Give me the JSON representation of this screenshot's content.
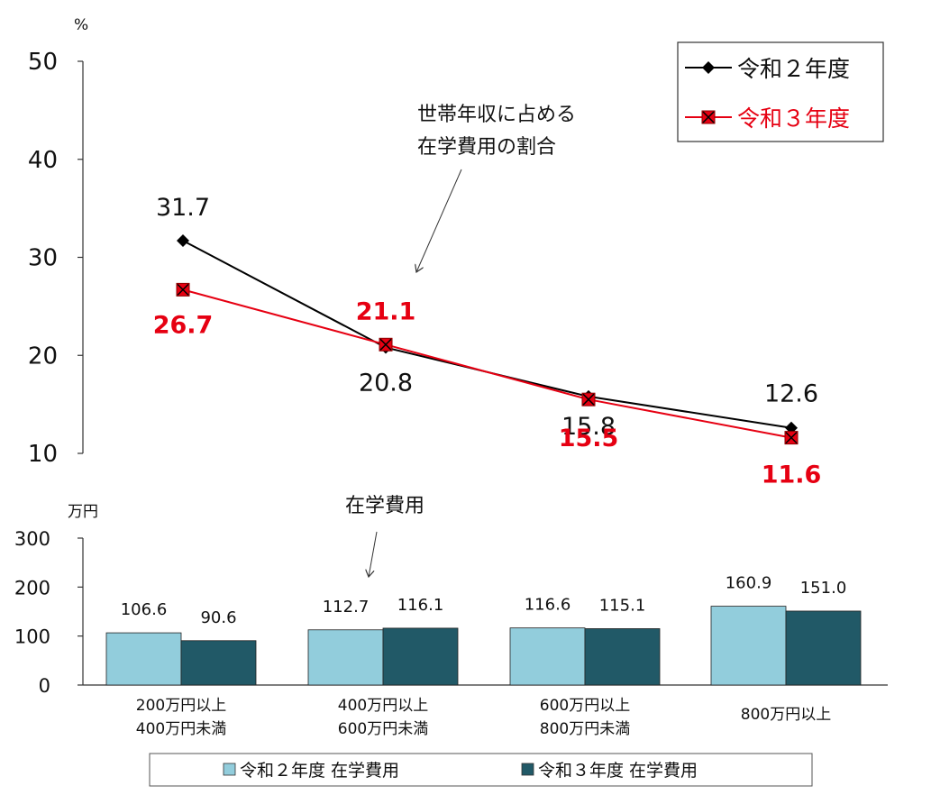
{
  "chart_data": [
    {
      "type": "line",
      "yunit": "%",
      "ylim": [
        10,
        50
      ],
      "yticks": [
        10,
        20,
        30,
        40,
        50
      ],
      "annotation": [
        "世帯年収に占める",
        "在学費用の割合"
      ],
      "legend_position": "top-right",
      "series": [
        {
          "name": "令和２年度",
          "color": "#000000",
          "marker": "diamond",
          "values": [
            31.7,
            20.8,
            15.8,
            12.6
          ],
          "labels": [
            "31.7",
            "20.8",
            "15.8",
            "12.6"
          ]
        },
        {
          "name": "令和３年度",
          "color": "#e60012",
          "marker": "x-square",
          "values": [
            26.7,
            21.1,
            15.5,
            11.6
          ],
          "labels": [
            "26.7",
            "21.1",
            "15.5",
            "11.6"
          ]
        }
      ]
    },
    {
      "type": "bar",
      "yunit": "万円",
      "ylim": [
        0,
        300
      ],
      "yticks": [
        0,
        100,
        200,
        300
      ],
      "annotation": "在学費用",
      "legend_position": "bottom",
      "categories": [
        [
          "200万円以上",
          "400万円未満"
        ],
        [
          "400万円以上",
          "600万円未満"
        ],
        [
          "600万円以上",
          "800万円未満"
        ],
        [
          "800万円以上"
        ]
      ],
      "series": [
        {
          "name": "令和２年度 在学費用",
          "color": "#92cddc",
          "values": [
            106.6,
            112.7,
            116.6,
            160.9
          ],
          "labels": [
            "106.6",
            "112.7",
            "116.6",
            "160.9"
          ]
        },
        {
          "name": "令和３年度 在学費用",
          "color": "#215967",
          "values": [
            90.6,
            116.1,
            115.1,
            151.0
          ],
          "labels": [
            "90.6",
            "116.1",
            "115.1",
            "151.0"
          ]
        }
      ]
    }
  ]
}
